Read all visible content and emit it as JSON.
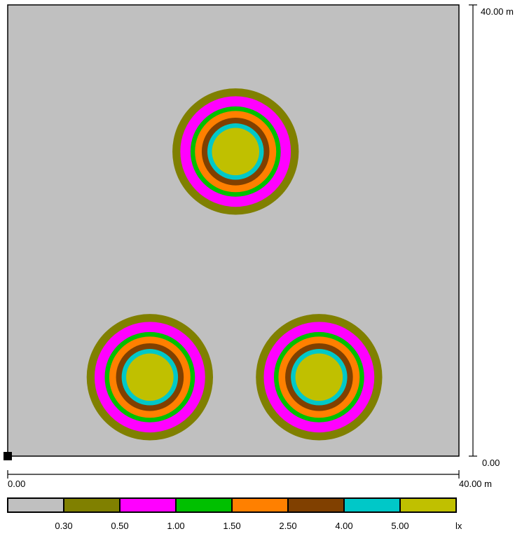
{
  "colors": {
    "background": "#c0c0c0",
    "frame": "#000000"
  },
  "scale": {
    "y_top_label": "40.00 m",
    "y_bottom_label": "0.00",
    "x_left_label": "0.00",
    "x_right_label": "40.00 m",
    "extent_m": 40
  },
  "legend": {
    "unit": "lx",
    "swatches": [
      {
        "color": "#c0c0c0"
      },
      {
        "color": "#808000",
        "label": "0.30"
      },
      {
        "color": "#ff00ff",
        "label": "0.50"
      },
      {
        "color": "#00c000",
        "label": "1.00"
      },
      {
        "color": "#ff8000",
        "label": "1.50"
      },
      {
        "color": "#804000",
        "label": "2.50"
      },
      {
        "color": "#00c8c8",
        "label": "4.00"
      },
      {
        "color": "#c0c000",
        "label": "5.00"
      }
    ]
  },
  "chart_data": {
    "type": "isolux contour",
    "unit": "lx",
    "thresholds": [
      0.3,
      0.5,
      1.0,
      1.5,
      2.5,
      4.0,
      5.0
    ],
    "area_m": {
      "x": [
        0,
        40
      ],
      "y": [
        0,
        40
      ]
    },
    "sources": [
      {
        "x_m": 20.2,
        "y_m": 27.0
      },
      {
        "x_m": 12.6,
        "y_m": 7.0
      },
      {
        "x_m": 27.6,
        "y_m": 7.0
      }
    ],
    "contour_radii_m": [
      {
        "level": 0.3,
        "r": 5.6
      },
      {
        "level": 0.5,
        "r": 4.9
      },
      {
        "level": 1.0,
        "r": 4.0
      },
      {
        "level": 1.5,
        "r": 3.6
      },
      {
        "level": 2.5,
        "r": 3.0
      },
      {
        "level": 4.0,
        "r": 2.5
      },
      {
        "level": 5.0,
        "r": 2.1
      }
    ]
  }
}
